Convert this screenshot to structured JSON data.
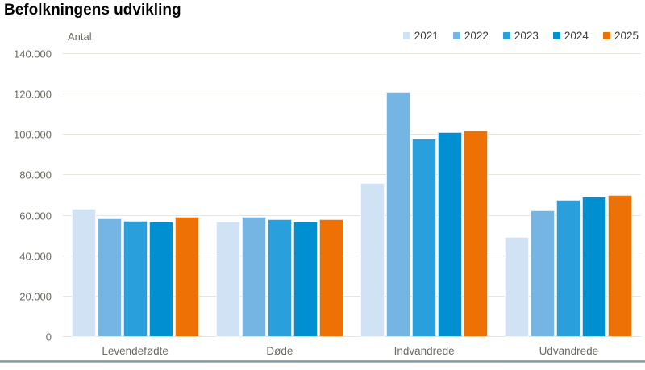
{
  "title": "Befolkningens udvikling",
  "chart_data": {
    "type": "bar",
    "title": "Befolkningens udvikling",
    "xlabel": "",
    "ylabel": "Antal",
    "ylim": [
      0,
      140000
    ],
    "grid": true,
    "legend_position": "top-right",
    "categories": [
      "Levendefødte",
      "Døde",
      "Indvandrede",
      "Udvandrede"
    ],
    "series": [
      {
        "name": "2021",
        "color": "#d1e2f4",
        "values": [
          63500,
          57200,
          76000,
          49500
        ]
      },
      {
        "name": "2022",
        "color": "#74b5e4",
        "values": [
          58500,
          59600,
          121200,
          62800
        ]
      },
      {
        "name": "2023",
        "color": "#29a0db",
        "values": [
          57500,
          58400,
          98200,
          68000
        ]
      },
      {
        "name": "2024",
        "color": "#0090d2",
        "values": [
          57000,
          57100,
          101500,
          69500
        ]
      },
      {
        "name": "2025",
        "color": "#ee7105",
        "values": [
          59500,
          58300,
          102000,
          70200
        ]
      }
    ],
    "ytick_values": [
      0,
      20000,
      40000,
      60000,
      80000,
      100000,
      120000,
      140000
    ],
    "ytick_labels": [
      "0",
      "20.000",
      "40.000",
      "60.000",
      "80.000",
      "100.000",
      "120.000",
      "140.000"
    ]
  },
  "colors": {
    "gridline": "#e7e5de",
    "axis_text": "#6c6c62",
    "legend_text": "#3c3c3c",
    "title_text": "#000000",
    "bottom_border": "#7f909c"
  }
}
